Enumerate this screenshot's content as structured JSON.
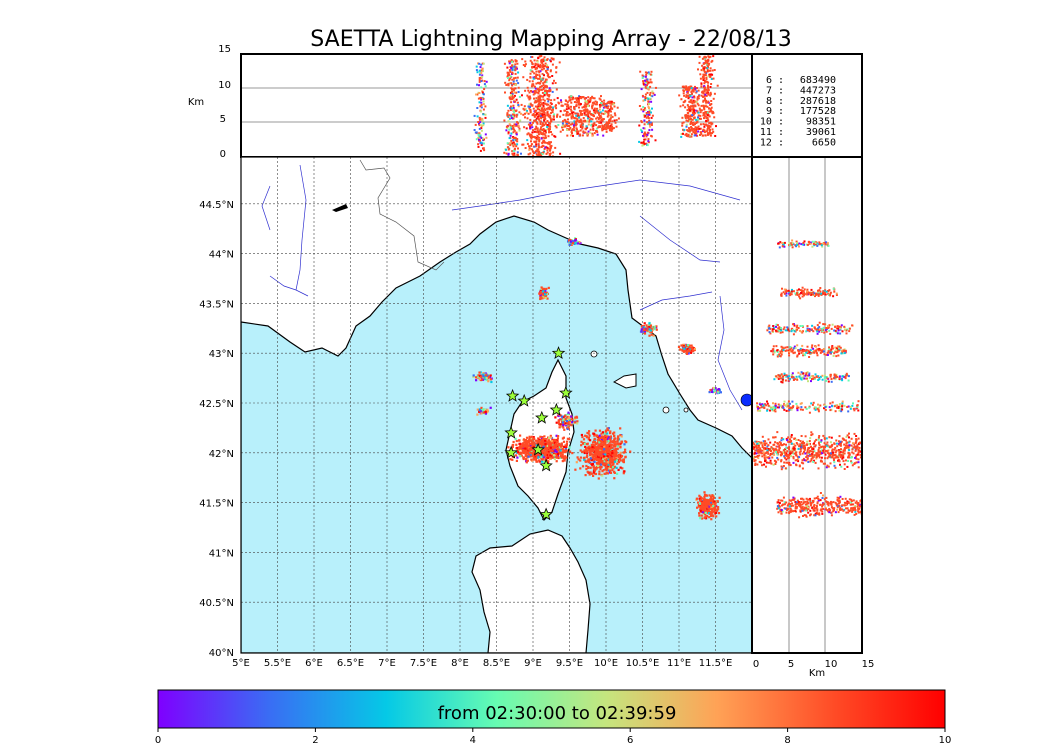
{
  "title": "SAETTA Lightning Mapping Array - 22/08/13",
  "top_panel": {
    "ylabel": "Km",
    "yticks": [
      "15",
      "10",
      "5",
      "0"
    ],
    "legend": [
      {
        "level": "6 :",
        "count": "683490",
        "color": "#000000"
      },
      {
        "level": "7 :",
        "count": "447273",
        "color": "#ff0000"
      },
      {
        "level": "8 :",
        "count": "287618",
        "color": "#000000"
      },
      {
        "level": "9 :",
        "count": "177528",
        "color": "#000000"
      },
      {
        "level": "10 :",
        "count": "98351",
        "color": "#000000"
      },
      {
        "level": "11 :",
        "count": "39061",
        "color": "#000000"
      },
      {
        "level": "12 :",
        "count": "6650",
        "color": "#000000"
      }
    ]
  },
  "map": {
    "lat_labels": [
      "44.5°N",
      "44°N",
      "43.5°N",
      "43°N",
      "42.5°N",
      "42°N",
      "41.5°N",
      "41°N",
      "40.5°N",
      "40°N"
    ],
    "lon_labels": [
      "5°E",
      "5.5°E",
      "6°E",
      "6.5°E",
      "7°E",
      "7.5°E",
      "8°E",
      "8.5°E",
      "9°E",
      "9.5°E",
      "10°E",
      "10.5°E",
      "11°E",
      "11.5°E"
    ],
    "lon_range": [
      5,
      12
    ],
    "lat_range": [
      40,
      45
    ],
    "sea_color": "#b8f0fb",
    "stations": [
      [
        9.35,
        43.0
      ],
      [
        8.72,
        42.57
      ],
      [
        9.45,
        42.6
      ],
      [
        8.88,
        42.52
      ],
      [
        9.12,
        42.35
      ],
      [
        9.32,
        42.43
      ],
      [
        8.7,
        42.2
      ],
      [
        9.07,
        42.03
      ],
      [
        8.7,
        42.0
      ],
      [
        9.18,
        41.87
      ],
      [
        9.18,
        41.38
      ]
    ],
    "cell_centers": [
      [
        9.15,
        43.68
      ],
      [
        9.55,
        44.17
      ],
      [
        10.5,
        43.33
      ],
      [
        11.05,
        43.1
      ],
      [
        8.6,
        42.83
      ],
      [
        8.3,
        42.5
      ],
      [
        9.2,
        42.15
      ],
      [
        9.85,
        42.05
      ],
      [
        11.55,
        42.68
      ],
      [
        11.4,
        41.5
      ],
      [
        9.0,
        42.5
      ]
    ]
  },
  "right_panel": {
    "xticks": [
      "0",
      "5",
      "10",
      "15"
    ],
    "xlabel": "Km"
  },
  "colorbar": {
    "label": "from 02:30:00 to 02:39:59",
    "ticks": [
      "0",
      "2",
      "4",
      "6",
      "8",
      "10"
    ],
    "colors": [
      "#7f00ff",
      "#3a6cf4",
      "#05c9e6",
      "#66fcb2",
      "#c5e57e",
      "#ffa256",
      "#ff4b26",
      "#ff0000"
    ]
  }
}
